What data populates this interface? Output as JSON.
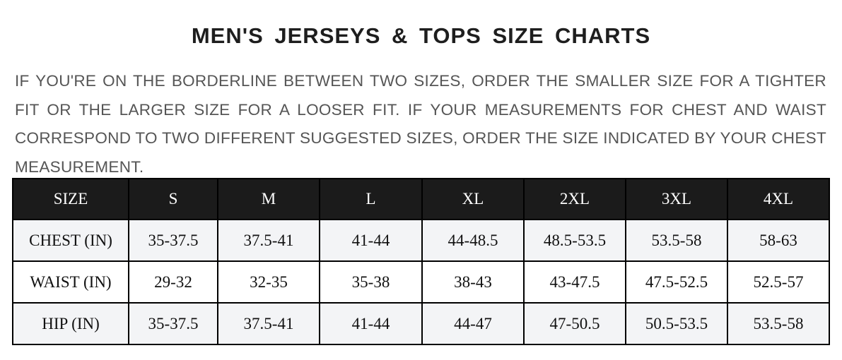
{
  "title": "MEN'S JERSEYS & TOPS SIZE CHARTS",
  "description": "IF YOU'RE ON THE BORDERLINE BETWEEN TWO SIZES, ORDER THE SMALLER SIZE FOR A TIGHTER FIT OR THE LARGER SIZE FOR A LOOSER FIT. IF YOUR MEASUREMENTS FOR CHEST AND WAIST CORRESPOND TO TWO DIFFERENT SUGGESTED SIZES, ORDER THE SIZE INDICATED BY YOUR CHEST MEASUREMENT.",
  "table": {
    "headers": [
      "SIZE",
      "S",
      "M",
      "L",
      "XL",
      "2XL",
      "3XL",
      "4XL"
    ],
    "rows": [
      [
        "CHEST (IN)",
        "35-37.5",
        "37.5-41",
        "41-44",
        "44-48.5",
        "48.5-53.5",
        "53.5-58",
        "58-63"
      ],
      [
        "WAIST (IN)",
        "29-32",
        "32-35",
        "35-38",
        "38-43",
        "43-47.5",
        "47.5-52.5",
        "52.5-57"
      ],
      [
        "HIP (IN)",
        "35-37.5",
        "37.5-41",
        "41-44",
        "44-47",
        "47-50.5",
        "50.5-53.5",
        "53.5-58"
      ]
    ]
  },
  "colors": {
    "header_bg": "#1b1b1b",
    "row_alt_bg": "#f3f4f6",
    "text_gray": "#555555"
  }
}
